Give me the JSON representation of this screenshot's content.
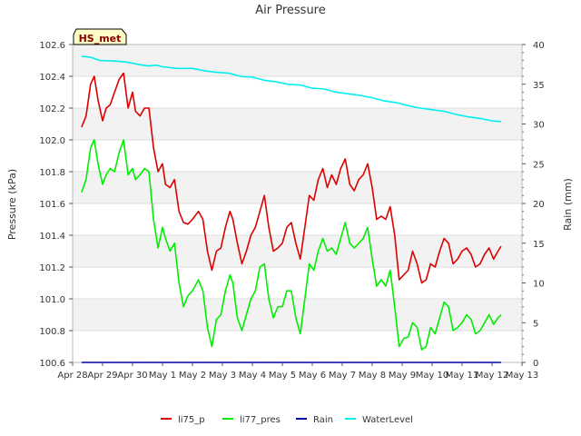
{
  "chart_data": {
    "type": "line",
    "title": "Air Pressure",
    "station_label": "HS_met",
    "xlabel": "",
    "ylabel": "Pressure (kPa)",
    "y2label": "Rain (mm)",
    "x_ticks": [
      "Apr 28",
      "Apr 29",
      "Apr 30",
      "May 1",
      "May 2",
      "May 3",
      "May 4",
      "May 5",
      "May 6",
      "May 7",
      "May 8",
      "May 9",
      "May 10",
      "May 11",
      "May 12",
      "May 13"
    ],
    "xlim": [
      0,
      15
    ],
    "ylim": [
      100.6,
      102.6
    ],
    "y_ticks": [
      "100.6",
      "100.8",
      "101.0",
      "101.2",
      "101.4",
      "101.6",
      "101.8",
      "102.0",
      "102.2",
      "102.4",
      "102.6"
    ],
    "y2lim": [
      0,
      40
    ],
    "y2_ticks": [
      "0",
      "5",
      "10",
      "15",
      "20",
      "25",
      "30",
      "35",
      "40"
    ],
    "legend_position": "bottom-center",
    "series": [
      {
        "name": "li75_p",
        "axis": "left",
        "color": "#dd0000",
        "x": [
          0.3,
          0.45,
          0.6,
          0.72,
          0.85,
          1.0,
          1.12,
          1.25,
          1.4,
          1.55,
          1.7,
          1.85,
          2.0,
          2.1,
          2.25,
          2.4,
          2.55,
          2.7,
          2.85,
          3.0,
          3.1,
          3.25,
          3.4,
          3.55,
          3.7,
          3.85,
          4.0,
          4.2,
          4.35,
          4.5,
          4.65,
          4.8,
          4.95,
          5.1,
          5.25,
          5.35,
          5.5,
          5.65,
          5.8,
          5.95,
          6.1,
          6.25,
          6.4,
          6.55,
          6.7,
          6.85,
          7.0,
          7.15,
          7.3,
          7.45,
          7.6,
          7.75,
          7.9,
          8.05,
          8.2,
          8.35,
          8.5,
          8.65,
          8.8,
          8.95,
          9.1,
          9.25,
          9.4,
          9.55,
          9.7,
          9.85,
          10.0,
          10.15,
          10.3,
          10.45,
          10.6,
          10.75,
          10.9,
          11.05,
          11.2,
          11.35,
          11.5,
          11.65,
          11.8,
          11.95,
          12.1,
          12.25,
          12.4,
          12.55,
          12.7,
          12.85,
          13.0,
          13.15,
          13.3,
          13.45,
          13.6,
          13.75,
          13.9,
          14.05,
          14.2,
          14.3
        ],
        "values": [
          102.08,
          102.15,
          102.35,
          102.4,
          102.25,
          102.12,
          102.2,
          102.22,
          102.3,
          102.38,
          102.42,
          102.2,
          102.3,
          102.18,
          102.15,
          102.2,
          102.2,
          101.95,
          101.8,
          101.85,
          101.72,
          101.7,
          101.75,
          101.55,
          101.48,
          101.47,
          101.5,
          101.55,
          101.5,
          101.3,
          101.18,
          101.3,
          101.32,
          101.45,
          101.55,
          101.5,
          101.35,
          101.22,
          101.3,
          101.4,
          101.45,
          101.55,
          101.65,
          101.45,
          101.3,
          101.32,
          101.35,
          101.45,
          101.48,
          101.35,
          101.25,
          101.45,
          101.65,
          101.62,
          101.75,
          101.82,
          101.7,
          101.78,
          101.72,
          101.82,
          101.88,
          101.72,
          101.68,
          101.75,
          101.78,
          101.85,
          101.7,
          101.5,
          101.52,
          101.5,
          101.58,
          101.4,
          101.12,
          101.15,
          101.18,
          101.3,
          101.22,
          101.1,
          101.12,
          101.22,
          101.2,
          101.3,
          101.38,
          101.35,
          101.22,
          101.25,
          101.3,
          101.32,
          101.28,
          101.2,
          101.22,
          101.28,
          101.32,
          101.25,
          101.3,
          101.33
        ]
      },
      {
        "name": "li77_pres",
        "axis": "left",
        "color": "#00ee00",
        "x": [
          0.3,
          0.45,
          0.6,
          0.72,
          0.85,
          1.0,
          1.12,
          1.25,
          1.4,
          1.55,
          1.7,
          1.85,
          2.0,
          2.1,
          2.25,
          2.4,
          2.55,
          2.7,
          2.85,
          3.0,
          3.1,
          3.25,
          3.4,
          3.55,
          3.7,
          3.85,
          4.0,
          4.2,
          4.35,
          4.5,
          4.65,
          4.8,
          4.95,
          5.1,
          5.25,
          5.35,
          5.5,
          5.65,
          5.8,
          5.95,
          6.1,
          6.25,
          6.4,
          6.55,
          6.7,
          6.85,
          7.0,
          7.15,
          7.3,
          7.45,
          7.6,
          7.75,
          7.9,
          8.05,
          8.2,
          8.35,
          8.5,
          8.65,
          8.8,
          8.95,
          9.1,
          9.25,
          9.4,
          9.55,
          9.7,
          9.85,
          10.0,
          10.15,
          10.3,
          10.45,
          10.6,
          10.75,
          10.9,
          11.05,
          11.2,
          11.35,
          11.5,
          11.65,
          11.8,
          11.95,
          12.1,
          12.25,
          12.4,
          12.55,
          12.7,
          12.85,
          13.0,
          13.15,
          13.3,
          13.45,
          13.6,
          13.75,
          13.9,
          14.05,
          14.2,
          14.3
        ],
        "values": [
          101.67,
          101.75,
          101.95,
          102.0,
          101.85,
          101.72,
          101.78,
          101.82,
          101.8,
          101.92,
          102.0,
          101.78,
          101.82,
          101.75,
          101.78,
          101.82,
          101.8,
          101.5,
          101.32,
          101.45,
          101.38,
          101.3,
          101.35,
          101.1,
          100.95,
          101.02,
          101.05,
          101.12,
          101.05,
          100.82,
          100.7,
          100.87,
          100.9,
          101.05,
          101.15,
          101.1,
          100.88,
          100.8,
          100.9,
          101.0,
          101.05,
          101.2,
          101.22,
          101.0,
          100.88,
          100.95,
          100.95,
          101.05,
          101.05,
          100.88,
          100.78,
          101.0,
          101.22,
          101.18,
          101.3,
          101.38,
          101.3,
          101.32,
          101.28,
          101.38,
          101.48,
          101.35,
          101.32,
          101.35,
          101.38,
          101.45,
          101.25,
          101.08,
          101.12,
          101.08,
          101.18,
          100.95,
          100.7,
          100.75,
          100.76,
          100.85,
          100.82,
          100.68,
          100.7,
          100.82,
          100.78,
          100.88,
          100.98,
          100.95,
          100.8,
          100.82,
          100.85,
          100.9,
          100.87,
          100.78,
          100.8,
          100.85,
          100.9,
          100.84,
          100.88,
          100.9
        ]
      },
      {
        "name": "Rain",
        "axis": "right",
        "color": "#0000aa",
        "x": [
          0.3,
          14.3
        ],
        "values": [
          0,
          0
        ]
      },
      {
        "name": "WaterLevel",
        "axis": "right",
        "color": "#00eeee",
        "x": [
          0.3,
          0.6,
          0.9,
          1.5,
          1.8,
          2.2,
          2.5,
          2.8,
          3.0,
          3.5,
          4.0,
          4.4,
          4.8,
          5.2,
          5.6,
          6.0,
          6.4,
          6.8,
          7.2,
          7.6,
          8.0,
          8.4,
          8.8,
          9.2,
          9.6,
          10.0,
          10.4,
          10.8,
          11.2,
          11.6,
          12.0,
          12.4,
          12.8,
          13.2,
          13.6,
          14.0,
          14.3
        ],
        "values": [
          38.5,
          38.4,
          38.0,
          37.9,
          37.8,
          37.5,
          37.3,
          37.4,
          37.2,
          37.0,
          37.0,
          36.7,
          36.5,
          36.4,
          36.0,
          35.9,
          35.5,
          35.3,
          35.0,
          34.9,
          34.5,
          34.4,
          34.0,
          33.8,
          33.6,
          33.3,
          32.9,
          32.7,
          32.3,
          32.0,
          31.8,
          31.6,
          31.2,
          30.9,
          30.7,
          30.4,
          30.3
        ]
      }
    ]
  }
}
